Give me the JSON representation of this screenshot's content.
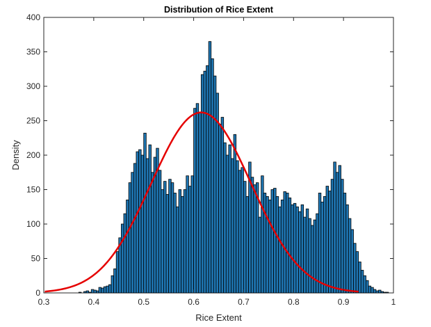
{
  "chart_data": {
    "type": "bar",
    "title": "Distribution of Rice Extent",
    "xlabel": "Rice Extent",
    "ylabel": "Density",
    "xlim": [
      0.3,
      1.0
    ],
    "ylim": [
      0,
      400
    ],
    "xticks": [
      "0.3",
      "0.4",
      "0.5",
      "0.6",
      "0.7",
      "0.8",
      "0.9",
      "1"
    ],
    "yticks": [
      "0",
      "50",
      "100",
      "150",
      "200",
      "250",
      "300",
      "350",
      "400"
    ],
    "grid": false,
    "legend": "none",
    "bin_width": 0.005,
    "bins_start": 0.37,
    "values": [
      1,
      0,
      2,
      3,
      1,
      5,
      4,
      3,
      8,
      7,
      9,
      10,
      12,
      25,
      35,
      60,
      80,
      100,
      115,
      135,
      160,
      175,
      188,
      205,
      208,
      200,
      232,
      195,
      215,
      175,
      197,
      210,
      178,
      150,
      162,
      143,
      165,
      160,
      145,
      125,
      150,
      140,
      150,
      170,
      155,
      170,
      268,
      275,
      262,
      317,
      322,
      330,
      365,
      340,
      315,
      290,
      245,
      255,
      218,
      200,
      215,
      195,
      230,
      192,
      178,
      182,
      162,
      140,
      190,
      168,
      157,
      160,
      110,
      170,
      145,
      140,
      135,
      150,
      152,
      140,
      125,
      135,
      147,
      145,
      138,
      128,
      130,
      125,
      118,
      128,
      110,
      122,
      108,
      98,
      106,
      115,
      145,
      132,
      140,
      155,
      148,
      165,
      190,
      175,
      185,
      165,
      145,
      128,
      108,
      92,
      72,
      60,
      45,
      33,
      25,
      18,
      10,
      8,
      5,
      3,
      4,
      2,
      1,
      1
    ],
    "fit_curve": {
      "type": "normal",
      "mean": 0.615,
      "sd": 0.1,
      "peak": 262,
      "x_range": [
        0.302,
        0.93
      ],
      "color": "#e50000"
    },
    "bar_fill": "#1f77b4",
    "bar_edge": "#000000"
  }
}
